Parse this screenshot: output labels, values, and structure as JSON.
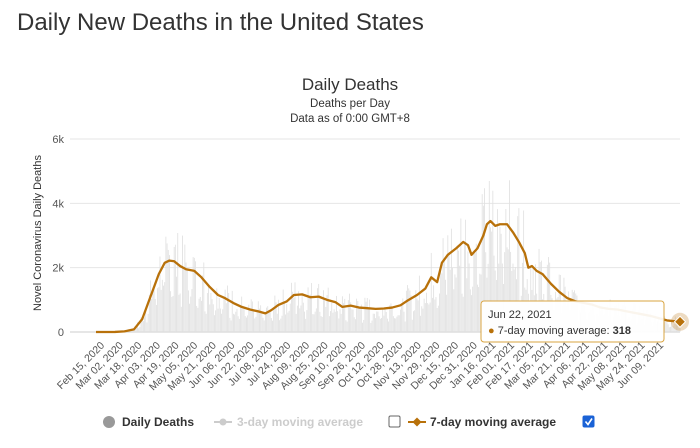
{
  "page": {
    "title": "Daily New Deaths in the United States"
  },
  "chart_data": {
    "type": "line",
    "title": "Daily Deaths",
    "subtitle_1": "Deaths per Day",
    "subtitle_2": "Data as of 0:00 GMT+8",
    "xlabel": "",
    "ylabel": "Novel Coronavirus Daily Deaths",
    "ylim": [
      0,
      6000
    ],
    "y_ticks": [
      {
        "value": 0,
        "label": "0"
      },
      {
        "value": 2000,
        "label": "2k"
      },
      {
        "value": 4000,
        "label": "4k"
      },
      {
        "value": 6000,
        "label": "6k"
      }
    ],
    "x_range": [
      "2020-02-15",
      "2021-06-22"
    ],
    "x_tick_labels": [
      "Feb 15, 2020",
      "Mar 02, 2020",
      "Mar 18, 2020",
      "Apr 03, 2020",
      "Apr 19, 2020",
      "May 05, 2020",
      "May 21, 2020",
      "Jun 06, 2020",
      "Jun 22, 2020",
      "Jul 08, 2020",
      "Jul 24, 2020",
      "Aug 09, 2020",
      "Aug 25, 2020",
      "Sep 10, 2020",
      "Sep 26, 2020",
      "Oct 12, 2020",
      "Oct 28, 2020",
      "Nov 13, 2020",
      "Nov 29, 2020",
      "Dec 15, 2020",
      "Dec 31, 2020",
      "Jan 16, 2021",
      "Feb 01, 2021",
      "Feb 17, 2021",
      "Mar 05, 2021",
      "Mar 21, 2021",
      "Apr 06, 2021",
      "Apr 22, 2021",
      "May 08, 2021",
      "May 24, 2021",
      "Jun 09, 2021"
    ],
    "grid": true,
    "legend_position": "bottom",
    "series": [
      {
        "name": "Daily Deaths",
        "kind": "bar",
        "color": "#e0e0e0",
        "visible": true,
        "values_interpolated_from": "7-day moving average",
        "noise_note": "bars scattered around the 7-day average"
      },
      {
        "name": "3-day moving average",
        "kind": "line",
        "color": "#cccccc",
        "visible": false,
        "checked": false
      },
      {
        "name": "7-day moving average",
        "kind": "line",
        "color": "#b8710a",
        "visible": true,
        "checked": true,
        "points": [
          {
            "x": "2020-02-15",
            "y": 0
          },
          {
            "x": "2020-03-02",
            "y": 2
          },
          {
            "x": "2020-03-10",
            "y": 20
          },
          {
            "x": "2020-03-18",
            "y": 80
          },
          {
            "x": "2020-03-25",
            "y": 400
          },
          {
            "x": "2020-04-01",
            "y": 1100
          },
          {
            "x": "2020-04-08",
            "y": 1800
          },
          {
            "x": "2020-04-13",
            "y": 2150
          },
          {
            "x": "2020-04-17",
            "y": 2220
          },
          {
            "x": "2020-04-21",
            "y": 2200
          },
          {
            "x": "2020-04-26",
            "y": 2050
          },
          {
            "x": "2020-05-01",
            "y": 1950
          },
          {
            "x": "2020-05-08",
            "y": 1900
          },
          {
            "x": "2020-05-14",
            "y": 1700
          },
          {
            "x": "2020-05-21",
            "y": 1400
          },
          {
            "x": "2020-05-28",
            "y": 1150
          },
          {
            "x": "2020-06-03",
            "y": 1050
          },
          {
            "x": "2020-06-10",
            "y": 900
          },
          {
            "x": "2020-06-17",
            "y": 780
          },
          {
            "x": "2020-06-24",
            "y": 700
          },
          {
            "x": "2020-07-01",
            "y": 640
          },
          {
            "x": "2020-07-07",
            "y": 580
          },
          {
            "x": "2020-07-12",
            "y": 680
          },
          {
            "x": "2020-07-18",
            "y": 840
          },
          {
            "x": "2020-07-25",
            "y": 950
          },
          {
            "x": "2020-07-31",
            "y": 1150
          },
          {
            "x": "2020-08-07",
            "y": 1170
          },
          {
            "x": "2020-08-14",
            "y": 1080
          },
          {
            "x": "2020-08-21",
            "y": 1100
          },
          {
            "x": "2020-08-28",
            "y": 1000
          },
          {
            "x": "2020-09-04",
            "y": 930
          },
          {
            "x": "2020-09-10",
            "y": 780
          },
          {
            "x": "2020-09-17",
            "y": 820
          },
          {
            "x": "2020-09-24",
            "y": 760
          },
          {
            "x": "2020-10-01",
            "y": 740
          },
          {
            "x": "2020-10-08",
            "y": 720
          },
          {
            "x": "2020-10-15",
            "y": 730
          },
          {
            "x": "2020-10-22",
            "y": 760
          },
          {
            "x": "2020-10-29",
            "y": 830
          },
          {
            "x": "2020-11-05",
            "y": 1000
          },
          {
            "x": "2020-11-12",
            "y": 1150
          },
          {
            "x": "2020-11-19",
            "y": 1350
          },
          {
            "x": "2020-11-24",
            "y": 1700
          },
          {
            "x": "2020-11-29",
            "y": 1550
          },
          {
            "x": "2020-12-03",
            "y": 2150
          },
          {
            "x": "2020-12-08",
            "y": 2400
          },
          {
            "x": "2020-12-15",
            "y": 2600
          },
          {
            "x": "2020-12-21",
            "y": 2800
          },
          {
            "x": "2020-12-25",
            "y": 2700
          },
          {
            "x": "2020-12-28",
            "y": 2400
          },
          {
            "x": "2021-01-02",
            "y": 2600
          },
          {
            "x": "2021-01-07",
            "y": 3000
          },
          {
            "x": "2021-01-10",
            "y": 3350
          },
          {
            "x": "2021-01-13",
            "y": 3450
          },
          {
            "x": "2021-01-17",
            "y": 3300
          },
          {
            "x": "2021-01-21",
            "y": 3350
          },
          {
            "x": "2021-01-27",
            "y": 3350
          },
          {
            "x": "2021-02-01",
            "y": 3100
          },
          {
            "x": "2021-02-06",
            "y": 2800
          },
          {
            "x": "2021-02-11",
            "y": 2450
          },
          {
            "x": "2021-02-14",
            "y": 2000
          },
          {
            "x": "2021-02-17",
            "y": 2050
          },
          {
            "x": "2021-02-21",
            "y": 1900
          },
          {
            "x": "2021-02-26",
            "y": 1800
          },
          {
            "x": "2021-03-05",
            "y": 1500
          },
          {
            "x": "2021-03-12",
            "y": 1250
          },
          {
            "x": "2021-03-19",
            "y": 1050
          },
          {
            "x": "2021-03-26",
            "y": 950
          },
          {
            "x": "2021-04-02",
            "y": 900
          },
          {
            "x": "2021-04-09",
            "y": 850
          },
          {
            "x": "2021-04-16",
            "y": 760
          },
          {
            "x": "2021-04-23",
            "y": 720
          },
          {
            "x": "2021-04-30",
            "y": 700
          },
          {
            "x": "2021-05-07",
            "y": 650
          },
          {
            "x": "2021-05-14",
            "y": 600
          },
          {
            "x": "2021-05-21",
            "y": 550
          },
          {
            "x": "2021-05-28",
            "y": 500
          },
          {
            "x": "2021-06-04",
            "y": 430
          },
          {
            "x": "2021-06-11",
            "y": 360
          },
          {
            "x": "2021-06-22",
            "y": 318
          }
        ]
      }
    ],
    "tooltip": {
      "date": "Jun 22, 2021",
      "series": "7-day moving average",
      "value": 318
    }
  },
  "legend": {
    "items": [
      {
        "label": "Daily Deaths",
        "marker": "circle",
        "color": "#999999",
        "checkbox": null
      },
      {
        "label": "3-day moving average",
        "marker": "line-circle",
        "color": "#cccccc",
        "checkbox": false
      },
      {
        "label": "7-day moving average",
        "marker": "line-diamond",
        "color": "#b8710a",
        "checkbox": true
      }
    ]
  }
}
